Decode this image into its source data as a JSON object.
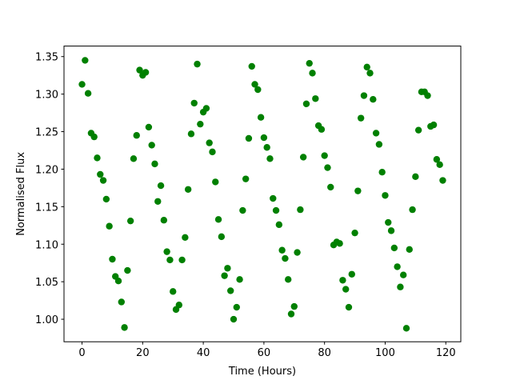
{
  "chart_data": {
    "type": "scatter",
    "x_label": "Time (Hours)",
    "y_label": "Normalised Flux",
    "color": "#008000",
    "x": [
      0,
      1,
      2,
      3,
      4,
      5,
      6,
      7,
      8,
      9,
      10,
      11,
      12,
      13,
      14,
      15,
      16,
      17,
      18,
      19,
      20,
      21,
      22,
      23,
      24,
      25,
      26,
      27,
      28,
      29,
      30,
      31,
      32,
      33,
      34,
      35,
      36,
      37,
      38,
      39,
      40,
      41,
      42,
      43,
      44,
      45,
      46,
      47,
      48,
      49,
      50,
      51,
      52,
      53,
      54,
      55,
      56,
      57,
      58,
      59,
      60,
      61,
      62,
      63,
      64,
      65,
      66,
      67,
      68,
      69,
      70,
      71,
      72,
      73,
      74,
      75,
      76,
      77,
      78,
      79,
      80,
      81,
      82,
      83,
      84,
      85,
      86,
      87,
      88,
      89,
      90,
      91,
      92,
      93,
      94,
      95,
      96,
      97,
      98,
      99,
      100,
      101,
      102,
      103,
      104,
      105,
      106,
      107,
      108,
      109,
      110,
      111,
      112,
      113,
      114,
      115,
      116,
      117,
      118,
      119
    ],
    "values": [
      1.313,
      1.345,
      1.301,
      1.248,
      1.243,
      1.215,
      1.193,
      1.185,
      1.16,
      1.124,
      1.08,
      1.057,
      1.051,
      1.023,
      0.989,
      1.065,
      1.131,
      1.214,
      1.245,
      1.332,
      1.325,
      1.329,
      1.256,
      1.232,
      1.207,
      1.157,
      1.178,
      1.132,
      1.09,
      1.079,
      1.037,
      1.013,
      1.019,
      1.079,
      1.109,
      1.173,
      1.247,
      1.288,
      1.34,
      1.26,
      1.276,
      1.281,
      1.235,
      1.223,
      1.183,
      1.133,
      1.11,
      1.058,
      1.068,
      1.038,
      1.0,
      1.016,
      1.053,
      1.145,
      1.187,
      1.241,
      1.337,
      1.313,
      1.306,
      1.269,
      1.242,
      1.229,
      1.214,
      1.161,
      1.145,
      1.126,
      1.092,
      1.081,
      1.053,
      1.007,
      1.017,
      1.089,
      1.146,
      1.216,
      1.287,
      1.341,
      1.328,
      1.294,
      1.258,
      1.253,
      1.218,
      1.202,
      1.176,
      1.099,
      1.103,
      1.101,
      1.052,
      1.04,
      1.016,
      1.06,
      1.115,
      1.171,
      1.268,
      1.298,
      1.336,
      1.328,
      1.293,
      1.248,
      1.233,
      1.196,
      1.165,
      1.129,
      1.118,
      1.095,
      1.07,
      1.043,
      1.059,
      0.988,
      1.093,
      1.146,
      1.19,
      1.252,
      1.303,
      1.303,
      1.298,
      1.257,
      1.259,
      1.213,
      1.206,
      1.185
    ],
    "xlim": [
      -5.95,
      124.95
    ],
    "ylim": [
      0.97,
      1.364
    ],
    "xticks": [
      0,
      20,
      40,
      60,
      80,
      100,
      120
    ],
    "yticks": [
      {
        "value": 1.0,
        "label": "1.00"
      },
      {
        "value": 1.05,
        "label": "1.05"
      },
      {
        "value": 1.1,
        "label": "1.10"
      },
      {
        "value": 1.15,
        "label": "1.15"
      },
      {
        "value": 1.2,
        "label": "1.20"
      },
      {
        "value": 1.25,
        "label": "1.25"
      },
      {
        "value": 1.3,
        "label": "1.30"
      },
      {
        "value": 1.35,
        "label": "1.35"
      }
    ],
    "grid": false
  }
}
